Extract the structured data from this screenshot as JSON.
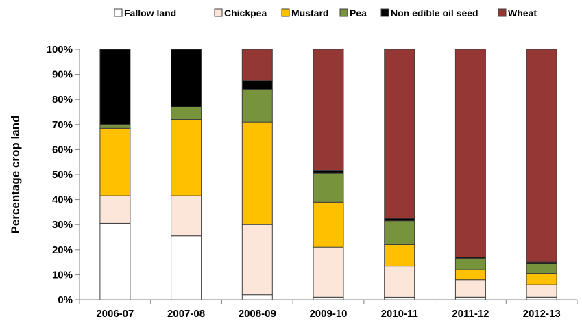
{
  "chart_data": {
    "type": "bar",
    "stacked": true,
    "categories": [
      "2006-07",
      "2007-08",
      "2008-09",
      "2009-10",
      "2010-11",
      "2011-12",
      "2012-13"
    ],
    "ylabel": "Percentage crop land",
    "ylim": [
      0,
      100
    ],
    "yticks": [
      "0%",
      "10%",
      "20%",
      "30%",
      "40%",
      "50%",
      "60%",
      "70%",
      "80%",
      "90%",
      "100%"
    ],
    "legend_position": "top",
    "grid": false,
    "series": [
      {
        "name": "Fallow land",
        "color": "#ffffff",
        "values": [
          30.5,
          25.5,
          2.0,
          1.0,
          1.0,
          1.0,
          1.0
        ]
      },
      {
        "name": "Chickpea",
        "color": "#fbe6d9",
        "values": [
          11.0,
          16.0,
          28.0,
          20.0,
          12.5,
          7.0,
          5.0
        ]
      },
      {
        "name": "Mustard",
        "color": "#ffc000",
        "values": [
          27.0,
          30.5,
          41.0,
          18.0,
          8.5,
          4.0,
          4.5
        ]
      },
      {
        "name": "Pea",
        "color": "#77933c",
        "values": [
          1.5,
          5.0,
          13.0,
          11.5,
          9.5,
          4.5,
          4.0
        ]
      },
      {
        "name": "Non edible oil seed",
        "color": "#000000",
        "values": [
          30.0,
          23.0,
          3.5,
          1.0,
          1.0,
          0.5,
          0.5
        ]
      },
      {
        "name": "Wheat",
        "color": "#953735",
        "values": [
          0,
          0,
          12.5,
          48.5,
          67.5,
          83.0,
          85.0
        ]
      }
    ]
  }
}
